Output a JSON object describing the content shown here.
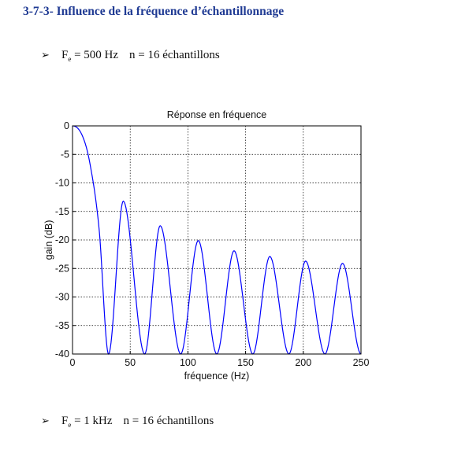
{
  "section": {
    "heading": "3-7-3- Influence de la fréquence d’échantillonnage"
  },
  "bullets": [
    {
      "param_main": "F",
      "param_sub": "e",
      "param_value": " = 500 Hz",
      "samples": "n = 16 échantillons"
    },
    {
      "param_main": "F",
      "param_sub": "e",
      "param_value": " = 1 kHz",
      "samples": "n = 16 échantillons"
    }
  ],
  "bullet_glyph": "➢",
  "chart_data": {
    "type": "line",
    "title": "Réponse en fréquence",
    "xlabel": "fréquence (Hz)",
    "ylabel": "gain (dB)",
    "xlim": [
      0,
      250
    ],
    "ylim": [
      -40,
      0
    ],
    "xticks": [
      0,
      50,
      100,
      150,
      200,
      250
    ],
    "yticks": [
      0,
      -5,
      -10,
      -15,
      -20,
      -25,
      -30,
      -35,
      -40
    ],
    "grid": true,
    "line_color": "#0000ff",
    "series": [
      {
        "x": [
          0,
          8,
          15,
          23,
          31.25,
          44,
          62.5,
          76,
          93.75,
          109,
          125,
          140,
          156.25,
          171,
          187.5,
          202,
          218.75,
          234,
          250
        ],
        "values": [
          0,
          -1.5,
          -6.5,
          -18,
          -40,
          -13.2,
          -40,
          -17.5,
          -40,
          -20.1,
          -40,
          -21.9,
          -40,
          -22.9,
          -40,
          -23.7,
          -40,
          -24.1,
          -40
        ]
      }
    ]
  }
}
